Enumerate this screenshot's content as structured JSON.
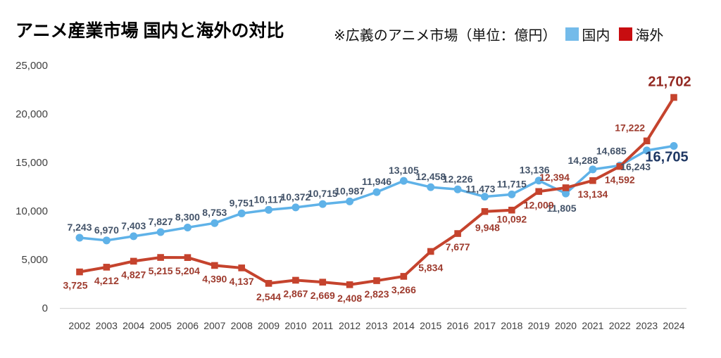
{
  "header": {
    "title": "アニメ産業市場 国内と海外の対比",
    "subtitle": "※広義のアニメ市場（単位：億円）",
    "legend": [
      {
        "label": "国内",
        "color": "#74BBEA"
      },
      {
        "label": "海外",
        "color": "#C80D10"
      }
    ]
  },
  "chart_data": {
    "type": "line",
    "title": "アニメ産業市場 国内と海外の対比",
    "subtitle": "※広義のアニメ市場（単位：億円）",
    "unit": "億円",
    "categories": [
      "2002",
      "2003",
      "2004",
      "2005",
      "2006",
      "2007",
      "2008",
      "2009",
      "2010",
      "2011",
      "2012",
      "2013",
      "2014",
      "2015",
      "2016",
      "2017",
      "2018",
      "2019",
      "2020",
      "2021",
      "2022",
      "2023",
      "2024"
    ],
    "series": [
      {
        "name": "国内",
        "marker": "circle",
        "color": "#5FB2E8",
        "label_color": "#44546A",
        "values": [
          7243,
          6970,
          7403,
          7827,
          8300,
          8753,
          9751,
          10117,
          10372,
          10715,
          10987,
          11946,
          13105,
          12458,
          12226,
          11473,
          11715,
          13136,
          11805,
          14288,
          14685,
          16243,
          16705
        ],
        "label_default": {
          "dx": 0,
          "dy": -10
        },
        "label_overrides": {
          "15": {
            "dx": -6,
            "dy": -6
          },
          "17": {
            "dx": -6
          },
          "18": {
            "dx": -6,
            "dy": 26
          },
          "19": {
            "dx": -14,
            "dy": -8
          },
          "20": {
            "dx": -12,
            "dy": -16
          },
          "21": {
            "dx": -16,
            "dy": 28
          },
          "22": {
            "dx": -10,
            "dy": 22,
            "size": 20,
            "weight": 700,
            "color": "#1F3864"
          }
        }
      },
      {
        "name": "海外",
        "marker": "square",
        "color": "#C5432D",
        "label_color": "#9E3B2E",
        "values": [
          3725,
          4212,
          4827,
          5215,
          5204,
          4390,
          4137,
          2544,
          2867,
          2669,
          2408,
          2823,
          3266,
          5834,
          7677,
          9948,
          10092,
          12009,
          12394,
          13134,
          14592,
          17222,
          21702
        ],
        "label_default": {
          "dx": 0,
          "dy": 24
        },
        "label_overrides": {
          "0": {
            "dx": -6
          },
          "13": {
            "dy": 28
          },
          "15": {
            "dx": 4,
            "dy": 28
          },
          "16": {
            "dy": 18
          },
          "18": {
            "dx": -16,
            "dy": -10
          },
          "19": {
            "dx": 0
          },
          "21": {
            "dx": -24,
            "dy": -14
          },
          "22": {
            "dx": -6,
            "dy": -16,
            "size": 20,
            "weight": 700,
            "color": "#932922"
          }
        }
      }
    ],
    "ylim": [
      0,
      25000
    ],
    "yticks": [
      0,
      5000,
      10000,
      15000,
      20000,
      25000
    ],
    "xlabel": "",
    "ylabel": "",
    "grid": false,
    "legend_position": "top-right",
    "axis_line_color": "#D8D8D8"
  }
}
